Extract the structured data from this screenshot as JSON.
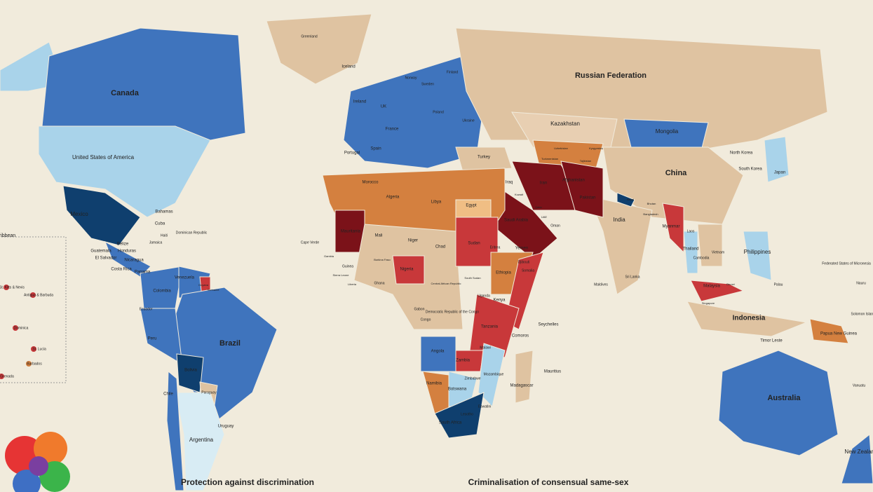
{
  "map": {
    "labels": [
      "Canada",
      "United States of America",
      "Mexico",
      "Brazil",
      "Argentina",
      "Colombia",
      "Peru",
      "Bolivia",
      "Venezuela",
      "Chile",
      "Uruguay",
      "Paraguay",
      "Ecuador",
      "Russian Federation",
      "Kazakhstan",
      "Mongolia",
      "China",
      "India",
      "Iran",
      "Afghanistan",
      "Pakistan",
      "Saudi Arabia",
      "Iraq",
      "Egypt",
      "Libya",
      "Algeria",
      "Morocco",
      "Mauritania",
      "Mali",
      "Niger",
      "Chad",
      "Sudan",
      "Nigeria",
      "Ethiopia",
      "Somalia",
      "Kenya",
      "Tanzania",
      "Democratic Republic of the Congo",
      "Angola",
      "Zambia",
      "Namibia",
      "Botswana",
      "South Africa",
      "Madagascar",
      "Mozambique",
      "Australia",
      "New Zealand",
      "Indonesia",
      "Philippines",
      "Malaysia",
      "Thailand",
      "Myanmar",
      "Japan",
      "South Korea",
      "North Korea",
      "Turkey",
      "Spain",
      "France",
      "UK",
      "Ireland",
      "Iceland",
      "Norway",
      "Sweden",
      "Finland",
      "Ukraine",
      "Poland",
      "Portugal",
      "Greenland",
      "Bahamas",
      "Cuba",
      "Dominican Republic",
      "Belize",
      "Honduras",
      "Nicaragua",
      "Guatemala",
      "El Salvador",
      "Costa Rica",
      "Panama",
      "Jamaica",
      "Haiti",
      "Yemen",
      "Oman",
      "Vietnam",
      "Laos",
      "Cambodia",
      "Sri Lanka",
      "Maldives",
      "Seychelles",
      "Comoros",
      "Mauritius",
      "Timor Leste",
      "Papua New Guinea",
      "Federated States of Micronesia",
      "Palau",
      "Nauru",
      "Solomon Islands",
      "Vanuatu",
      "Ghana",
      "Eritrea",
      "Djibouti",
      "Uganda",
      "Malawi",
      "Lesotho",
      "Eswatini",
      "Zimbabwe",
      "Gabon",
      "Congo",
      "Cape Verde",
      "Gambia",
      "Guinea",
      "Liberia",
      "Sierra Leone",
      "Burkina Faso",
      "Central African Republic",
      "South Sudan",
      "Nepal",
      "Bhutan",
      "Bangladesh",
      "Uzbekistan",
      "Turkmenistan",
      "Kyrgyzstan",
      "Tajikistan",
      "Kuwait",
      "UAE",
      "Qatar",
      "Singapore",
      "Brunei",
      "Guyana",
      "Suriname"
    ],
    "inset": {
      "title": "ern Caribbean",
      "labels": [
        "St. Kitts & Nevis",
        "Antigua & Barbuda",
        "Dominica",
        "St. Lucia",
        "Barbados",
        "Grenada"
      ]
    },
    "headings": [
      "Protection against discrimination",
      "Criminalisation of consensual same-sex"
    ]
  }
}
